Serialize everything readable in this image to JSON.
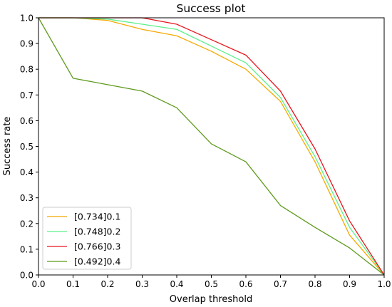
{
  "chart_data": {
    "type": "line",
    "title": "Success plot",
    "xlabel": "Overlap threshold",
    "ylabel": "Success rate",
    "xlim": [
      0,
      1
    ],
    "ylim": [
      0,
      1
    ],
    "xticks": [
      "0.0",
      "0.1",
      "0.2",
      "0.3",
      "0.4",
      "0.5",
      "0.6",
      "0.7",
      "0.8",
      "0.9",
      "1.0"
    ],
    "yticks": [
      "0.0",
      "0.1",
      "0.2",
      "0.3",
      "0.4",
      "0.5",
      "0.6",
      "0.7",
      "0.8",
      "0.9",
      "1.0"
    ],
    "grid": false,
    "legend_position": "lower-left",
    "x": [
      0,
      0.1,
      0.2,
      0.3,
      0.4,
      0.5,
      0.6,
      0.7,
      0.8,
      0.9,
      1.0
    ],
    "series": [
      {
        "name": "[0.734]0.1",
        "color": "#f5a800",
        "values": [
          1.0,
          1.0,
          0.99,
          0.955,
          0.93,
          0.87,
          0.8,
          0.675,
          0.44,
          0.155,
          0.0
        ]
      },
      {
        "name": "[0.748]0.2",
        "color": "#5cf08a",
        "values": [
          1.0,
          1.0,
          0.995,
          0.975,
          0.955,
          0.89,
          0.825,
          0.69,
          0.46,
          0.185,
          0.0
        ]
      },
      {
        "name": "[0.766]0.3",
        "color": "#e8141c",
        "values": [
          1.0,
          1.0,
          1.0,
          1.0,
          0.975,
          0.915,
          0.855,
          0.715,
          0.49,
          0.21,
          0.0
        ]
      },
      {
        "name": "[0.492]0.4",
        "color": "#5e9a1e",
        "values": [
          1.0,
          0.765,
          0.74,
          0.715,
          0.65,
          0.51,
          0.44,
          0.27,
          0.185,
          0.105,
          0.0
        ]
      }
    ]
  }
}
